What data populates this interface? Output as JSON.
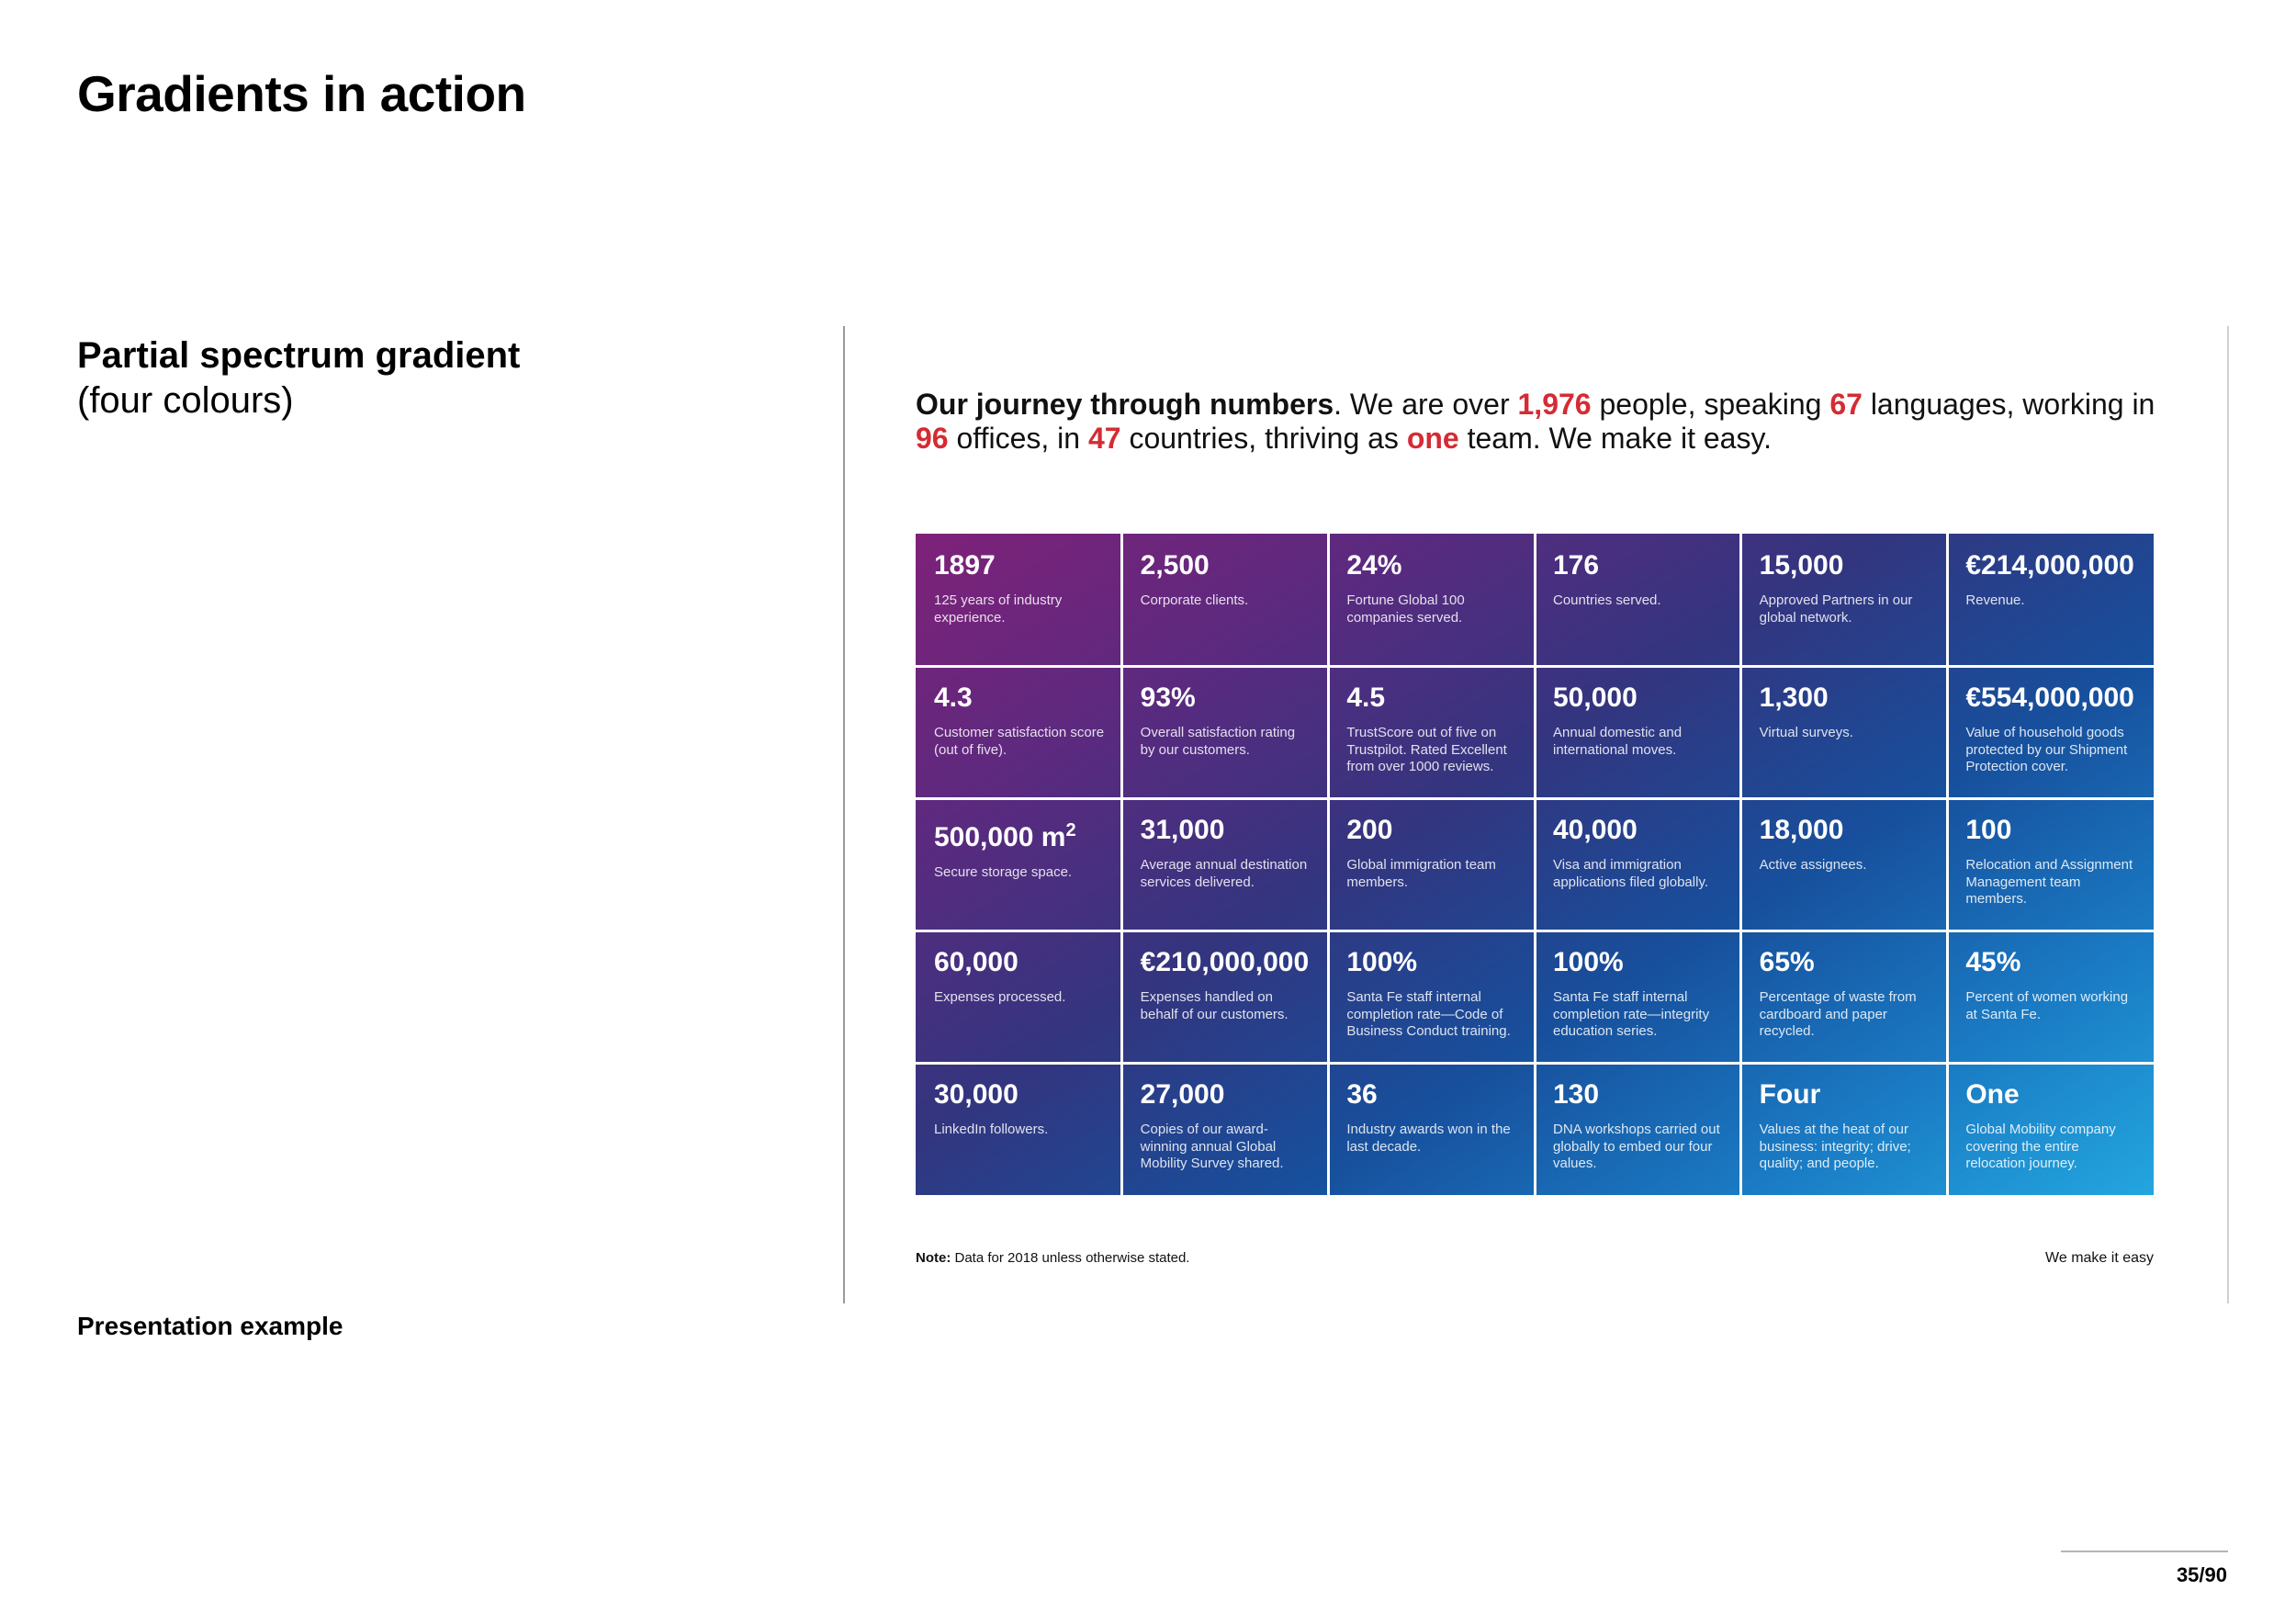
{
  "page": {
    "title": "Gradients in action",
    "section_title": "Partial spectrum gradient",
    "section_subtitle": "(four colours)",
    "caption": "Presentation example",
    "page_number": "35/90"
  },
  "headline": {
    "lead": "Our journey through numbers",
    "t1": ". We are over ",
    "v1": "1,976",
    "t2": " people, speaking ",
    "v2": "67",
    "t3": " languages, working in ",
    "v3": "96",
    "t4": " offices, in ",
    "v4": "47",
    "t5": " countries, thriving as ",
    "v5": "one",
    "t6": " team. We make it easy.",
    "highlight_color": "#d52b33"
  },
  "gradient_colors": [
    "#7f2179",
    "#5a2a7f",
    "#33357f",
    "#174f9c",
    "#1a7bc4",
    "#23a6df"
  ],
  "stats": [
    [
      {
        "value": "1897",
        "desc": "125 years of industry experience."
      },
      {
        "value": "2,500",
        "desc": "Corporate clients."
      },
      {
        "value": "24%",
        "desc": "Fortune Global 100 companies served."
      },
      {
        "value": "176",
        "desc": "Countries served."
      },
      {
        "value": "15,000",
        "desc": "Approved Partners in our global network."
      },
      {
        "value": "€214,000,000",
        "desc": "Revenue."
      }
    ],
    [
      {
        "value": "4.3",
        "desc": "Customer satisfaction score (out of five)."
      },
      {
        "value": "93%",
        "desc": "Overall satisfaction rating by our customers."
      },
      {
        "value": "4.5",
        "desc": "TrustScore out of five on Trustpilot. Rated Excellent from over 1000 reviews."
      },
      {
        "value": "50,000",
        "desc": "Annual domestic and international moves."
      },
      {
        "value": "1,300",
        "desc": "Virtual surveys."
      },
      {
        "value": "€554,000,000",
        "desc": "Value of household goods protected by our Shipment Protection cover."
      }
    ],
    [
      {
        "value": "500,000 m",
        "sup": "2",
        "desc": "Secure storage space."
      },
      {
        "value": "31,000",
        "desc": "Average annual destination services delivered."
      },
      {
        "value": "200",
        "desc": "Global immigration team members."
      },
      {
        "value": "40,000",
        "desc": "Visa and immigration applications filed globally."
      },
      {
        "value": "18,000",
        "desc": "Active assignees."
      },
      {
        "value": "100",
        "desc": "Relocation and Assignment Management team members."
      }
    ],
    [
      {
        "value": "60,000",
        "desc": "Expenses processed."
      },
      {
        "value": "€210,000,000",
        "desc": "Expenses handled on behalf of our customers."
      },
      {
        "value": "100%",
        "desc": "Santa Fe staff internal completion rate—Code of Business Conduct training."
      },
      {
        "value": "100%",
        "desc": "Santa Fe staff internal completion rate—integrity education series."
      },
      {
        "value": "65%",
        "desc": "Percentage of waste from cardboard and paper recycled."
      },
      {
        "value": "45%",
        "desc": "Percent of women working at Santa Fe."
      }
    ],
    [
      {
        "value": "30,000",
        "desc": "LinkedIn followers."
      },
      {
        "value": "27,000",
        "desc": "Copies of our award-winning annual Global Mobility Survey shared."
      },
      {
        "value": "36",
        "desc": "Industry awards won in the last decade."
      },
      {
        "value": "130",
        "desc": "DNA workshops carried out globally to embed our four values."
      },
      {
        "value": "Four",
        "desc": "Values at the heat of our business: integrity; drive; quality; and people."
      },
      {
        "value": "One",
        "desc": "Global Mobility company covering the entire relocation journey."
      }
    ]
  ],
  "footer": {
    "note_label": "Note:",
    "note_text": " Data for 2018 unless otherwise stated.",
    "tagline": "We make it easy"
  }
}
